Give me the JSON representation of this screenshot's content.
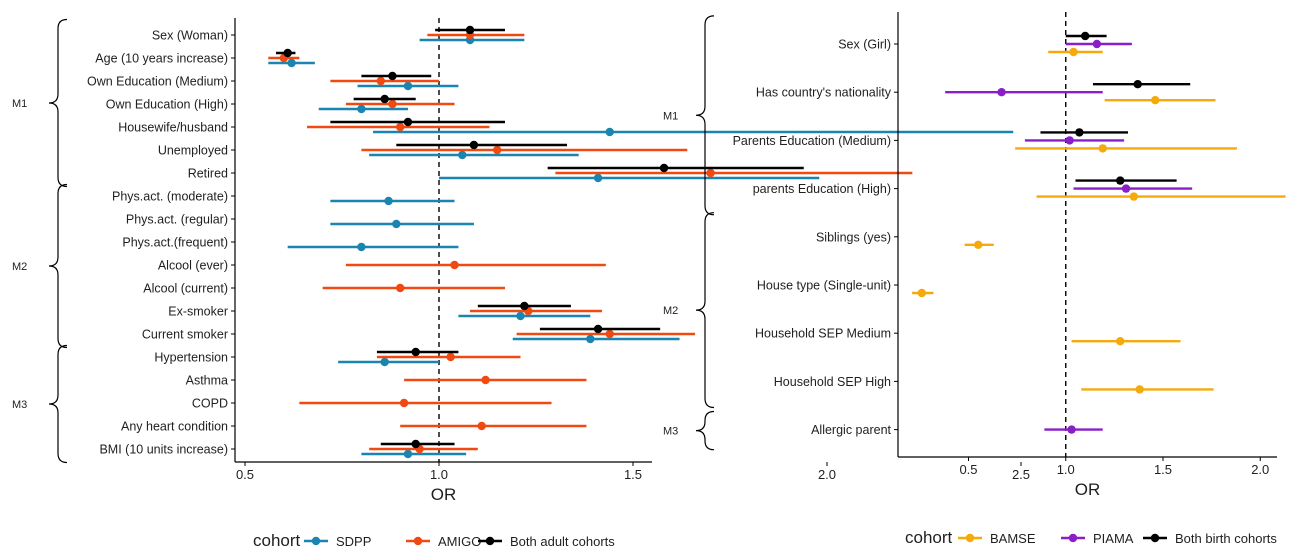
{
  "colors": {
    "SDPP": "#1a85b0",
    "AMIGO": "#f04a12",
    "Both adult cohorts": "#000000",
    "BAMSE": "#f5a90a",
    "PIAMA": "#8a1ec9",
    "Both birth cohorts": "#000000",
    "reference_line": "#000000",
    "text": "#1f1f1f"
  },
  "chart_data": [
    {
      "type": "forest",
      "title": "",
      "xlabel": "OR",
      "ylabel": "",
      "xlim": [
        0.45,
        2.6
      ],
      "xticks": [
        0.5,
        1.0,
        1.5,
        2.0,
        2.5
      ],
      "xtick_labels": [
        "0.5",
        "1.0",
        "1.5",
        "2.0",
        "2.5"
      ],
      "reference_line": 1.0,
      "grid": false,
      "legend_position": "bottom",
      "legend_title": "cohort",
      "series_names": [
        "SDPP",
        "AMIGO",
        "Both adult cohorts"
      ],
      "categories": [
        "Sex (Woman)",
        "Age (10 years increase)",
        "Own Education (Medium)",
        "Own Education (High)",
        "Housewife/husband",
        "Unemployed",
        "Retired",
        "Phys.act. (moderate)",
        "Phys.act. (regular)",
        "Phys.act.(frequent)",
        "Alcool (ever)",
        "Alcool (current)",
        "Ex-smoker",
        "Current smoker",
        "Hypertension",
        "Asthma",
        "COPD",
        "Any heart condition",
        "BMI (10 units increase)"
      ],
      "groups": [
        {
          "name": "M1",
          "from": 0,
          "to": 6
        },
        {
          "name": "M2",
          "from": 7,
          "to": 13
        },
        {
          "name": "M3",
          "from": 14,
          "to": 18
        }
      ],
      "series": [
        {
          "name": "SDPP",
          "estimates": [
            {
              "row": 0,
              "or": 1.08,
              "lo": 0.95,
              "hi": 1.22
            },
            {
              "row": 1,
              "or": 0.62,
              "lo": 0.56,
              "hi": 0.68
            },
            {
              "row": 2,
              "or": 0.92,
              "lo": 0.79,
              "hi": 1.05
            },
            {
              "row": 3,
              "or": 0.8,
              "lo": 0.69,
              "hi": 0.92
            },
            {
              "row": 4,
              "or": 1.44,
              "lo": 0.83,
              "hi": 2.48
            },
            {
              "row": 5,
              "or": 1.06,
              "lo": 0.82,
              "hi": 1.36
            },
            {
              "row": 6,
              "or": 1.41,
              "lo": 1.0,
              "hi": 1.98
            },
            {
              "row": 7,
              "or": 0.87,
              "lo": 0.72,
              "hi": 1.04
            },
            {
              "row": 8,
              "or": 0.89,
              "lo": 0.72,
              "hi": 1.09
            },
            {
              "row": 9,
              "or": 0.8,
              "lo": 0.61,
              "hi": 1.05
            },
            {
              "row": 12,
              "or": 1.21,
              "lo": 1.05,
              "hi": 1.39
            },
            {
              "row": 13,
              "or": 1.39,
              "lo": 1.19,
              "hi": 1.62
            },
            {
              "row": 14,
              "or": 0.86,
              "lo": 0.74,
              "hi": 1.0
            },
            {
              "row": 18,
              "or": 0.92,
              "lo": 0.8,
              "hi": 1.07
            }
          ]
        },
        {
          "name": "AMIGO",
          "estimates": [
            {
              "row": 0,
              "or": 1.08,
              "lo": 0.97,
              "hi": 1.22
            },
            {
              "row": 1,
              "or": 0.6,
              "lo": 0.56,
              "hi": 0.64
            },
            {
              "row": 2,
              "or": 0.85,
              "lo": 0.72,
              "hi": 1.0
            },
            {
              "row": 3,
              "or": 0.88,
              "lo": 0.76,
              "hi": 1.04
            },
            {
              "row": 4,
              "or": 0.9,
              "lo": 0.66,
              "hi": 1.13
            },
            {
              "row": 5,
              "or": 1.15,
              "lo": 0.8,
              "hi": 1.64
            },
            {
              "row": 6,
              "or": 1.7,
              "lo": 1.3,
              "hi": 2.22
            },
            {
              "row": 10,
              "or": 1.04,
              "lo": 0.76,
              "hi": 1.43
            },
            {
              "row": 11,
              "or": 0.9,
              "lo": 0.7,
              "hi": 1.17
            },
            {
              "row": 12,
              "or": 1.23,
              "lo": 1.08,
              "hi": 1.42
            },
            {
              "row": 13,
              "or": 1.44,
              "lo": 1.2,
              "hi": 1.66
            },
            {
              "row": 14,
              "or": 1.03,
              "lo": 0.84,
              "hi": 1.21
            },
            {
              "row": 15,
              "or": 1.12,
              "lo": 0.91,
              "hi": 1.38
            },
            {
              "row": 16,
              "or": 0.91,
              "lo": 0.64,
              "hi": 1.29
            },
            {
              "row": 17,
              "or": 1.11,
              "lo": 0.9,
              "hi": 1.38
            },
            {
              "row": 18,
              "or": 0.95,
              "lo": 0.82,
              "hi": 1.1
            }
          ]
        },
        {
          "name": "Both adult cohorts",
          "estimates": [
            {
              "row": 0,
              "or": 1.08,
              "lo": 0.99,
              "hi": 1.17
            },
            {
              "row": 1,
              "or": 0.61,
              "lo": 0.58,
              "hi": 0.63
            },
            {
              "row": 2,
              "or": 0.88,
              "lo": 0.8,
              "hi": 0.98
            },
            {
              "row": 3,
              "or": 0.86,
              "lo": 0.78,
              "hi": 0.94
            },
            {
              "row": 4,
              "or": 0.92,
              "lo": 0.72,
              "hi": 1.17
            },
            {
              "row": 5,
              "or": 1.09,
              "lo": 0.89,
              "hi": 1.33
            },
            {
              "row": 6,
              "or": 1.58,
              "lo": 1.28,
              "hi": 1.94
            },
            {
              "row": 12,
              "or": 1.22,
              "lo": 1.1,
              "hi": 1.34
            },
            {
              "row": 13,
              "or": 1.41,
              "lo": 1.26,
              "hi": 1.57
            },
            {
              "row": 14,
              "or": 0.94,
              "lo": 0.84,
              "hi": 1.05
            },
            {
              "row": 18,
              "or": 0.94,
              "lo": 0.85,
              "hi": 1.04
            }
          ]
        }
      ]
    },
    {
      "type": "forest",
      "title": "",
      "xlabel": "OR",
      "ylabel": "",
      "xlim": [
        0.15,
        2.2
      ],
      "xticks": [
        0.5,
        1.0,
        1.5,
        2.0
      ],
      "xtick_labels": [
        "0.5",
        "1.0",
        "1.5",
        "2.0"
      ],
      "reference_line": 1.0,
      "grid": false,
      "legend_position": "bottom",
      "legend_title": "cohort",
      "series_names": [
        "BAMSE",
        "PIAMA",
        "Both birth cohorts"
      ],
      "categories": [
        "Sex (Girl)",
        "Has country's nationality",
        "Parents Education (Medium)",
        "parents Education (High)",
        "Siblings (yes)",
        "House type (Single-unit)",
        "Household SEP Medium",
        "Household SEP High",
        "Allergic parent"
      ],
      "groups": [
        {
          "name": "M1",
          "from": 0,
          "to": 3
        },
        {
          "name": "M2",
          "from": 4,
          "to": 7
        },
        {
          "name": "M3",
          "from": 8,
          "to": 8
        }
      ],
      "series": [
        {
          "name": "BAMSE",
          "estimates": [
            {
              "row": 0,
              "or": 1.04,
              "lo": 0.91,
              "hi": 1.19
            },
            {
              "row": 1,
              "or": 1.46,
              "lo": 1.2,
              "hi": 1.77
            },
            {
              "row": 2,
              "or": 1.19,
              "lo": 0.74,
              "hi": 1.88
            },
            {
              "row": 3,
              "or": 1.35,
              "lo": 0.85,
              "hi": 2.13
            },
            {
              "row": 4,
              "or": 0.55,
              "lo": 0.48,
              "hi": 0.63
            },
            {
              "row": 5,
              "or": 0.26,
              "lo": 0.21,
              "hi": 0.32
            },
            {
              "row": 6,
              "or": 1.28,
              "lo": 1.03,
              "hi": 1.59
            },
            {
              "row": 7,
              "or": 1.38,
              "lo": 1.08,
              "hi": 1.76
            }
          ]
        },
        {
          "name": "PIAMA",
          "estimates": [
            {
              "row": 0,
              "or": 1.16,
              "lo": 1.0,
              "hi": 1.34
            },
            {
              "row": 1,
              "or": 0.67,
              "lo": 0.38,
              "hi": 1.19
            },
            {
              "row": 2,
              "or": 1.02,
              "lo": 0.79,
              "hi": 1.3
            },
            {
              "row": 3,
              "or": 1.31,
              "lo": 1.04,
              "hi": 1.65
            },
            {
              "row": 8,
              "or": 1.03,
              "lo": 0.89,
              "hi": 1.19
            }
          ]
        },
        {
          "name": "Both birth cohorts",
          "estimates": [
            {
              "row": 0,
              "or": 1.1,
              "lo": 1.0,
              "hi": 1.21
            },
            {
              "row": 1,
              "or": 1.37,
              "lo": 1.14,
              "hi": 1.64
            },
            {
              "row": 2,
              "or": 1.07,
              "lo": 0.87,
              "hi": 1.32
            },
            {
              "row": 3,
              "or": 1.28,
              "lo": 1.05,
              "hi": 1.57
            }
          ]
        }
      ]
    }
  ]
}
